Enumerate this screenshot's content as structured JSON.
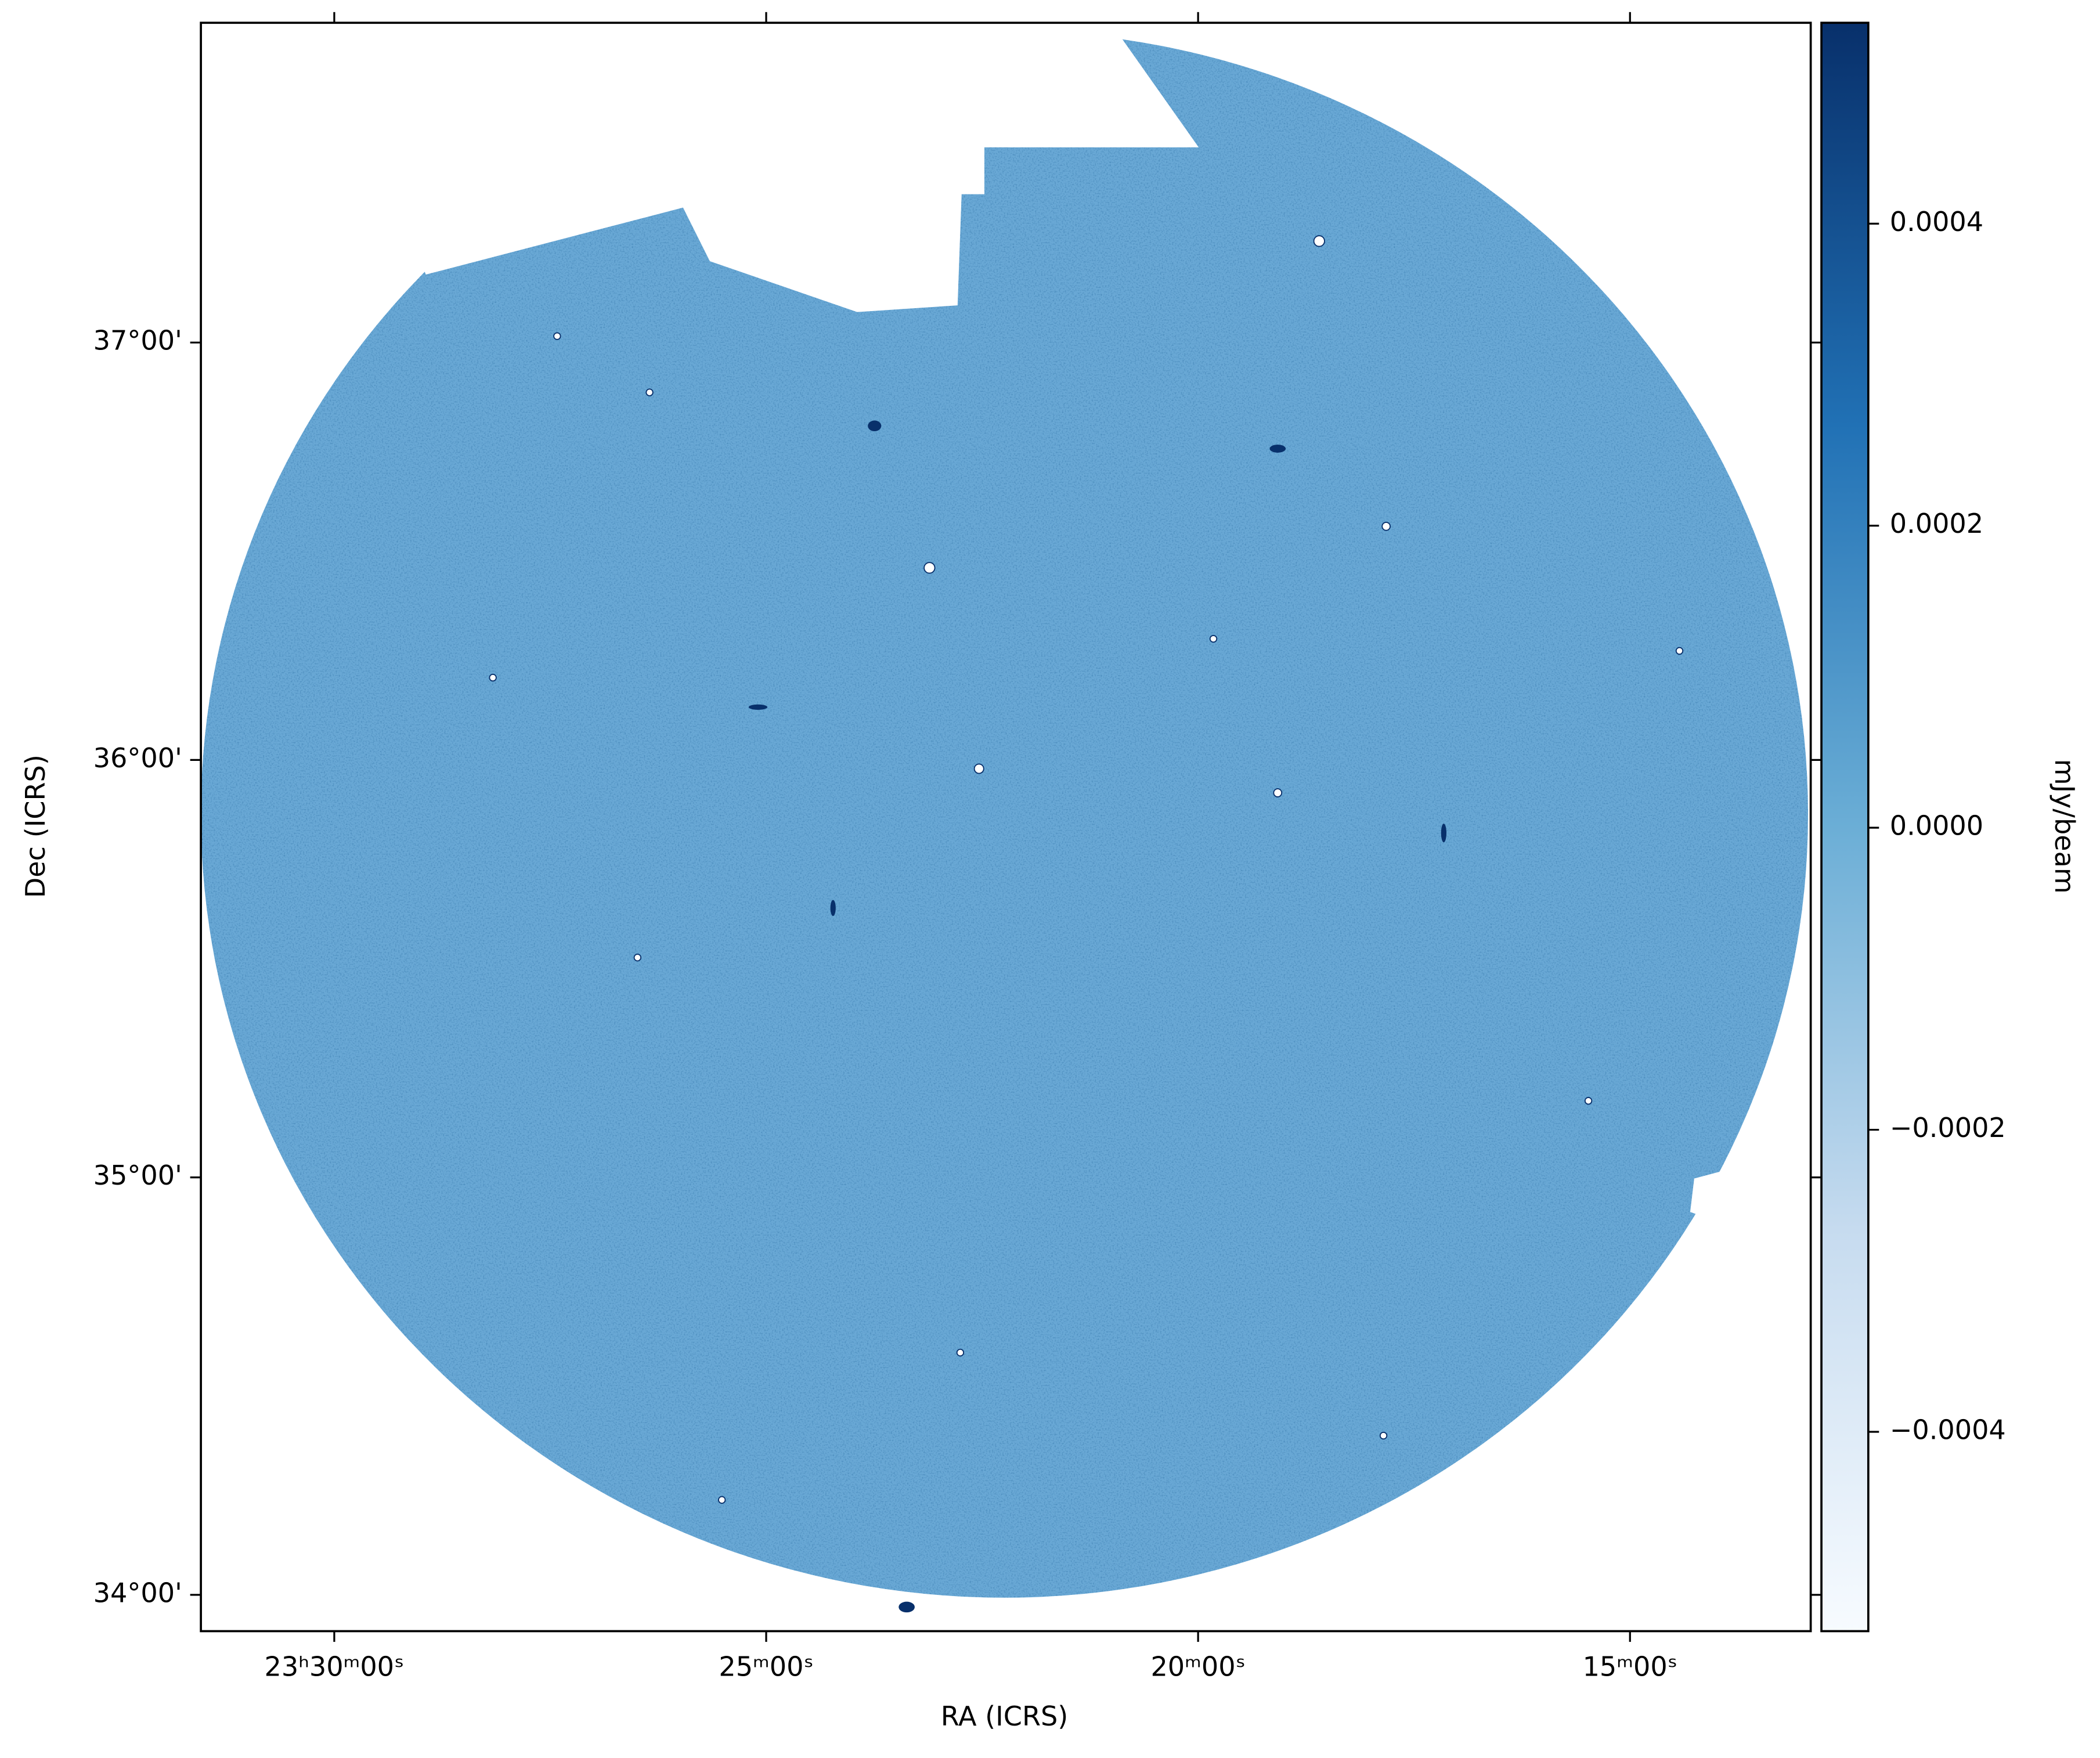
{
  "chart_data": {
    "type": "image",
    "xlabel": "RA (ICRS)",
    "ylabel": "Dec (ICRS)",
    "xlim": [
      352.886,
      348.227
    ],
    "xticks": [
      {
        "value": 352.5,
        "label": "23ʰ30ᵐ00ˢ"
      },
      {
        "value": 351.25,
        "label": "25ᵐ00ˢ"
      },
      {
        "value": 350,
        "label": "20ᵐ00ˢ"
      },
      {
        "value": 348.75,
        "label": "15ᵐ00ˢ"
      }
    ],
    "ylim": [
      33.913,
      37.766
    ],
    "yticks": [
      {
        "value": 34,
        "label": "34°00'"
      },
      {
        "value": 35,
        "label": "35°00'"
      },
      {
        "value": 36,
        "label": "36°00'"
      },
      {
        "value": 37,
        "label": "37°00'"
      }
    ],
    "colorbar": {
      "label": "mJy/beam",
      "lim": [
        -0.000532,
        0.000533
      ],
      "ticks": [
        {
          "value": -0.0004,
          "label": "−0.0004"
        },
        {
          "value": -0.0002,
          "label": "−0.0002"
        },
        {
          "value": 0,
          "label": "0.0000"
        },
        0.0002,
        0.0004
      ],
      "colors": [
        "#f7fbff",
        "#c6dbef",
        "#6baed6",
        "#2171b5",
        "#08306b"
      ]
    }
  }
}
